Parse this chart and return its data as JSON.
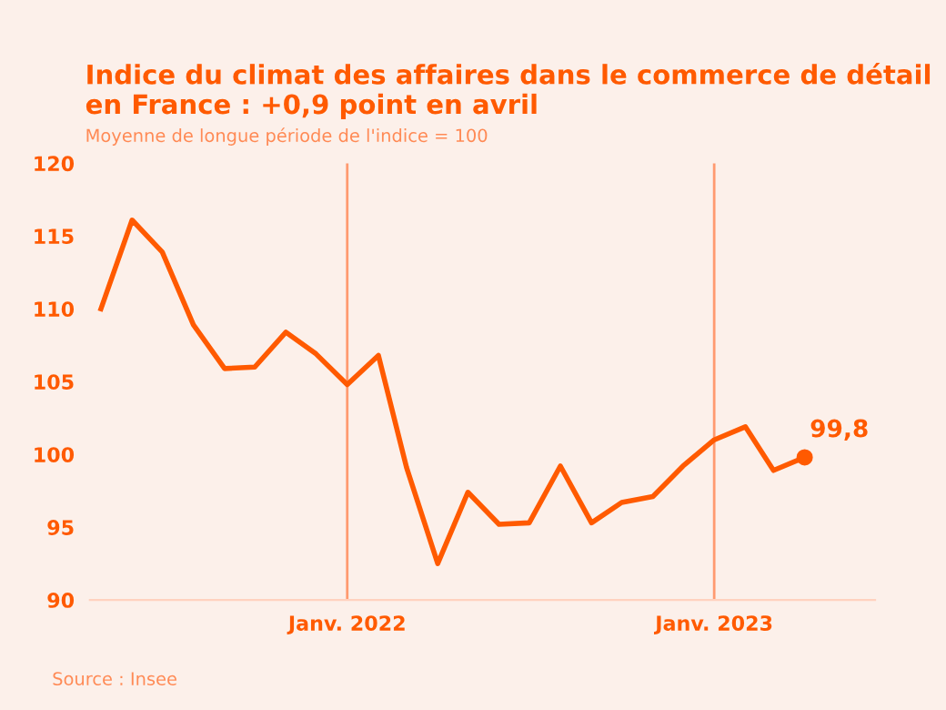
{
  "chart_data": {
    "type": "line",
    "title": "Indice du climat des affaires dans le commerce de détail en France : +0,9 point en avril",
    "subtitle": "Moyenne de longue période de l'indice = 100",
    "x": [
      "2021-05",
      "2021-06",
      "2021-07",
      "2021-08",
      "2021-09",
      "2021-10",
      "2021-11",
      "2021-12",
      "2022-01",
      "2022-02",
      "2022-03",
      "2022-04",
      "2022-05",
      "2022-06",
      "2022-07",
      "2022-08",
      "2022-09",
      "2022-10",
      "2022-11",
      "2022-12",
      "2023-01",
      "2023-02",
      "2023-03",
      "2023-04"
    ],
    "series": [
      {
        "color": "#ff5a00",
        "values": [
          110.0,
          116.1,
          113.9,
          108.9,
          105.9,
          106.0,
          108.4,
          106.9,
          104.8,
          106.8,
          99.1,
          92.5,
          97.4,
          95.2,
          95.3,
          99.2,
          95.3,
          96.7,
          97.1,
          99.2,
          101.0,
          101.9,
          98.9,
          99.8
        ]
      },
      {
        "type": "scatter",
        "color": "#ff5a00",
        "x": [
          "2023-04"
        ],
        "values": [
          99.8
        ]
      }
    ],
    "xticks": [
      {
        "value": "2022-01",
        "label": "Janv. 2022"
      },
      {
        "value": "2023-01",
        "label": "Janv. 2023"
      }
    ],
    "xlim": [
      "2021-04-20",
      "2023-06-10"
    ],
    "ylim": [
      90,
      120
    ],
    "yticks": [
      90,
      95,
      100,
      105,
      110,
      115,
      120
    ],
    "grid": "x",
    "annotations": [
      {
        "text": "99,8",
        "x": "2023-04",
        "y": 99.8
      },
      "Source : Insee"
    ]
  }
}
